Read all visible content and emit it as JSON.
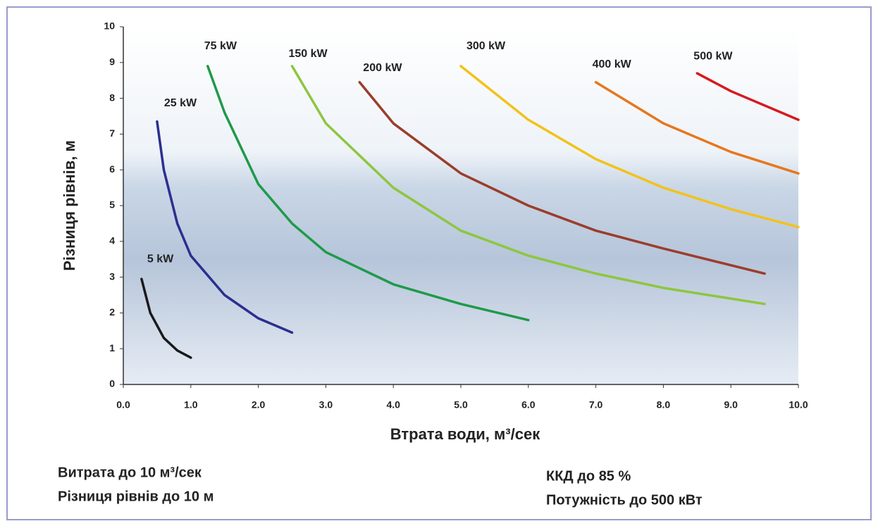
{
  "chart_data": {
    "type": "line",
    "x_label": "Втрата води, м³/сек",
    "y_label": "Різниця рівнів, м",
    "xlim": [
      0,
      10
    ],
    "ylim": [
      0,
      10
    ],
    "xticks": [
      {
        "value": 0,
        "label": "0.0"
      },
      {
        "value": 1,
        "label": "1.0"
      },
      {
        "value": 2,
        "label": "2.0"
      },
      {
        "value": 3,
        "label": "3.0"
      },
      {
        "value": 4,
        "label": "4.0"
      },
      {
        "value": 5,
        "label": "5.0"
      },
      {
        "value": 6,
        "label": "6.0"
      },
      {
        "value": 7,
        "label": "7.0"
      },
      {
        "value": 8,
        "label": "8.0"
      },
      {
        "value": 9,
        "label": "9.0"
      },
      {
        "value": 10,
        "label": "10.0"
      }
    ],
    "yticks": [
      0,
      1,
      2,
      3,
      4,
      5,
      6,
      7,
      8,
      9,
      10
    ],
    "series": [
      {
        "name": "5 kW",
        "color": "#1a1a1a",
        "x": [
          0.27,
          0.4,
          0.6,
          0.8,
          1.0
        ],
        "values": [
          2.95,
          2.0,
          1.3,
          0.95,
          0.75
        ]
      },
      {
        "name": "25 kW",
        "color": "#2b2f8f",
        "x": [
          0.5,
          0.6,
          0.8,
          1.0,
          1.5,
          2.0,
          2.5
        ],
        "values": [
          7.35,
          6.0,
          4.5,
          3.6,
          2.5,
          1.85,
          1.45
        ]
      },
      {
        "name": "75 kW",
        "color": "#1f9a4a",
        "x": [
          1.25,
          1.5,
          2.0,
          2.5,
          3.0,
          4.0,
          5.0,
          6.0
        ],
        "values": [
          8.9,
          7.6,
          5.6,
          4.5,
          3.7,
          2.8,
          2.25,
          1.8
        ]
      },
      {
        "name": "150 kW",
        "color": "#8dc63f",
        "x": [
          2.5,
          3.0,
          4.0,
          5.0,
          6.0,
          7.0,
          8.0,
          9.5
        ],
        "values": [
          8.9,
          7.3,
          5.5,
          4.3,
          3.6,
          3.1,
          2.7,
          2.25
        ]
      },
      {
        "name": "200 kW",
        "color": "#9b3d2a",
        "x": [
          3.5,
          4.0,
          5.0,
          6.0,
          7.0,
          8.0,
          9.5
        ],
        "values": [
          8.45,
          7.3,
          5.9,
          5.0,
          4.3,
          3.8,
          3.1
        ]
      },
      {
        "name": "300 kW",
        "color": "#f2c21b",
        "x": [
          5.0,
          6.0,
          7.0,
          8.0,
          9.0,
          10.0
        ],
        "values": [
          8.9,
          7.4,
          6.3,
          5.5,
          4.9,
          4.4
        ]
      },
      {
        "name": "400 kW",
        "color": "#e8761c",
        "x": [
          7.0,
          8.0,
          9.0,
          10.0
        ],
        "values": [
          8.45,
          7.3,
          6.5,
          5.9
        ]
      },
      {
        "name": "500 kW",
        "color": "#d71920",
        "x": [
          8.5,
          9.0,
          10.0
        ],
        "values": [
          8.7,
          8.2,
          7.4
        ]
      }
    ],
    "notes": [
      "Витрата до  10 м³/сек",
      "Різниця рівнів до 10 м",
      "ККД до 85 %",
      "Потужність до 500 кВт"
    ]
  }
}
